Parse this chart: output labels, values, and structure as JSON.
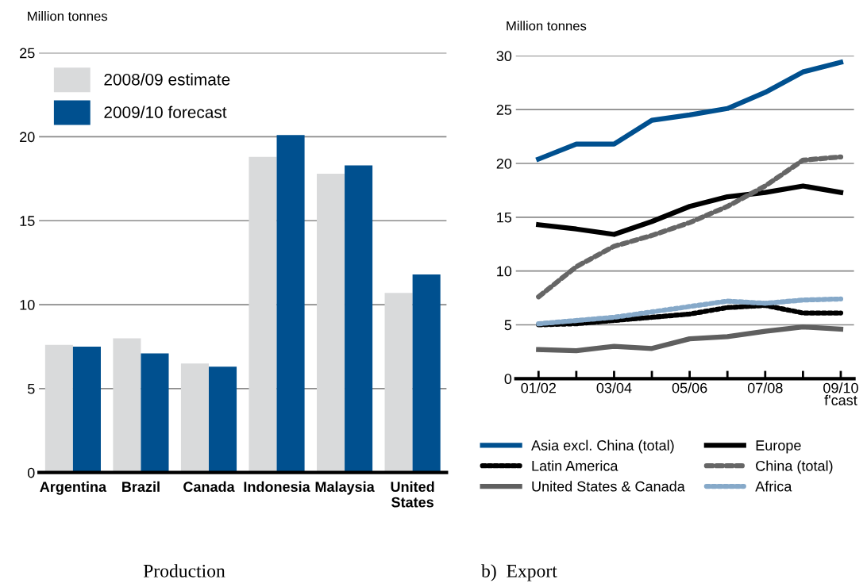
{
  "chart_data": [
    {
      "type": "bar",
      "title": "Production",
      "ylabel": "Million tonnes",
      "categories": [
        "Argentina",
        "Brazil",
        "Canada",
        "Indonesia",
        "Malaysia",
        "United\nStates"
      ],
      "series": [
        {
          "name": "2008/09 estimate",
          "color": "#d9dadb",
          "values": [
            7.6,
            8.0,
            6.5,
            18.8,
            17.8,
            10.7
          ]
        },
        {
          "name": "2009/10 forecast",
          "color": "#00508f",
          "values": [
            7.5,
            7.1,
            6.3,
            20.1,
            18.3,
            11.8
          ]
        }
      ],
      "ylim": [
        0,
        25
      ],
      "yticks": [
        0,
        5,
        10,
        15,
        20,
        25
      ],
      "grid": "y",
      "legend": "top left"
    },
    {
      "type": "line",
      "title": "b)  Export",
      "ylabel": "Million tonnes",
      "categories": [
        "01/02",
        null,
        "03/04",
        null,
        "05/06",
        null,
        "07/08",
        null,
        "09/10\nf'cast"
      ],
      "series": [
        {
          "name": "Asia excl. China (total)",
          "color": "#00508f",
          "line_style": "solid",
          "values": [
            20.4,
            21.8,
            21.8,
            24.0,
            24.5,
            25.1,
            26.6,
            28.5,
            29.4
          ]
        },
        {
          "name": "Latin America",
          "color": "#000000",
          "line_style": "dotted",
          "values": [
            5.0,
            5.1,
            5.4,
            5.7,
            6.0,
            6.6,
            6.8,
            6.1,
            6.1
          ]
        },
        {
          "name": "United States & Canada",
          "color": "#5f5f5f",
          "line_style": "solid",
          "values": [
            2.7,
            2.6,
            3.0,
            2.8,
            3.7,
            3.9,
            4.4,
            4.8,
            4.6
          ]
        },
        {
          "name": "Europe",
          "color": "#000000",
          "line_style": "solid",
          "values": [
            14.3,
            13.9,
            13.4,
            14.6,
            16.0,
            16.9,
            17.3,
            17.9,
            17.3
          ]
        },
        {
          "name": "China (total)",
          "color": "#666666",
          "line_style": "dashed",
          "values": [
            7.6,
            10.4,
            12.3,
            13.3,
            14.5,
            16.0,
            17.9,
            20.3,
            20.6
          ]
        },
        {
          "name": "Africa",
          "color": "#86a9c9",
          "line_style": "dotted",
          "values": [
            5.1,
            5.4,
            5.7,
            6.2,
            6.7,
            7.2,
            7.0,
            7.3,
            7.4
          ]
        }
      ],
      "ylim": [
        0,
        30
      ],
      "yticks": [
        0,
        5,
        10,
        15,
        20,
        25,
        30
      ],
      "grid": "y",
      "legend": "bottom"
    }
  ]
}
